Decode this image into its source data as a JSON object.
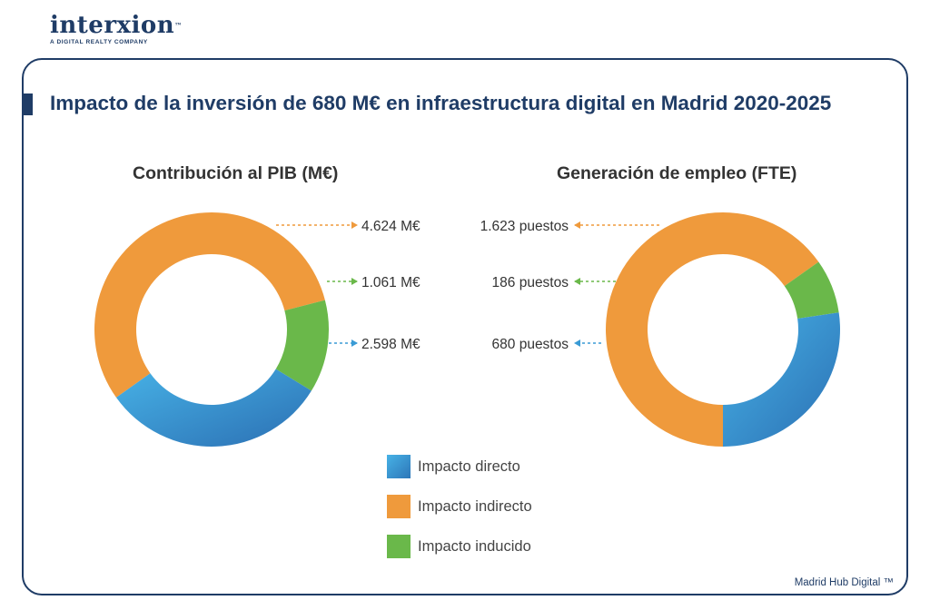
{
  "logo": {
    "name": "interxion",
    "tagline": "A DIGITAL REALTY COMPANY"
  },
  "page_title": "Impacto de la inversión de 680 M€ en infraestructura digital en Madrid 2020-2025",
  "footer": "Madrid Hub Digital ™",
  "colors": {
    "brand": "#1f3c66",
    "directo": "#3a9bd5",
    "indirecto": "#ef9a3c",
    "inducido": "#6ab84a"
  },
  "legend": [
    {
      "key": "directo",
      "label": "Impacto directo"
    },
    {
      "key": "indirecto",
      "label": "Impacto indirecto"
    },
    {
      "key": "inducido",
      "label": "Impacto inducido"
    }
  ],
  "chart_data": [
    {
      "type": "pie",
      "variant": "donut",
      "title": "Contribución al PIB (M€)",
      "slices": [
        {
          "key": "indirecto",
          "name": "Impacto indirecto",
          "value": 4624,
          "label": "4.624 M€"
        },
        {
          "key": "inducido",
          "name": "Impacto inducido",
          "value": 1061,
          "label": "1.061 M€"
        },
        {
          "key": "directo",
          "name": "Impacto directo",
          "value": 2598,
          "label": "2.598 M€"
        }
      ],
      "label_side": "right"
    },
    {
      "type": "pie",
      "variant": "donut",
      "title": "Generación de empleo (FTE)",
      "slices": [
        {
          "key": "indirecto",
          "name": "Impacto indirecto",
          "value": 1623,
          "label": "1.623 puestos"
        },
        {
          "key": "inducido",
          "name": "Impacto inducido",
          "value": 186,
          "label": "186 puestos"
        },
        {
          "key": "directo",
          "name": "Impacto directo",
          "value": 680,
          "label": "680 puestos"
        }
      ],
      "label_side": "left"
    }
  ]
}
